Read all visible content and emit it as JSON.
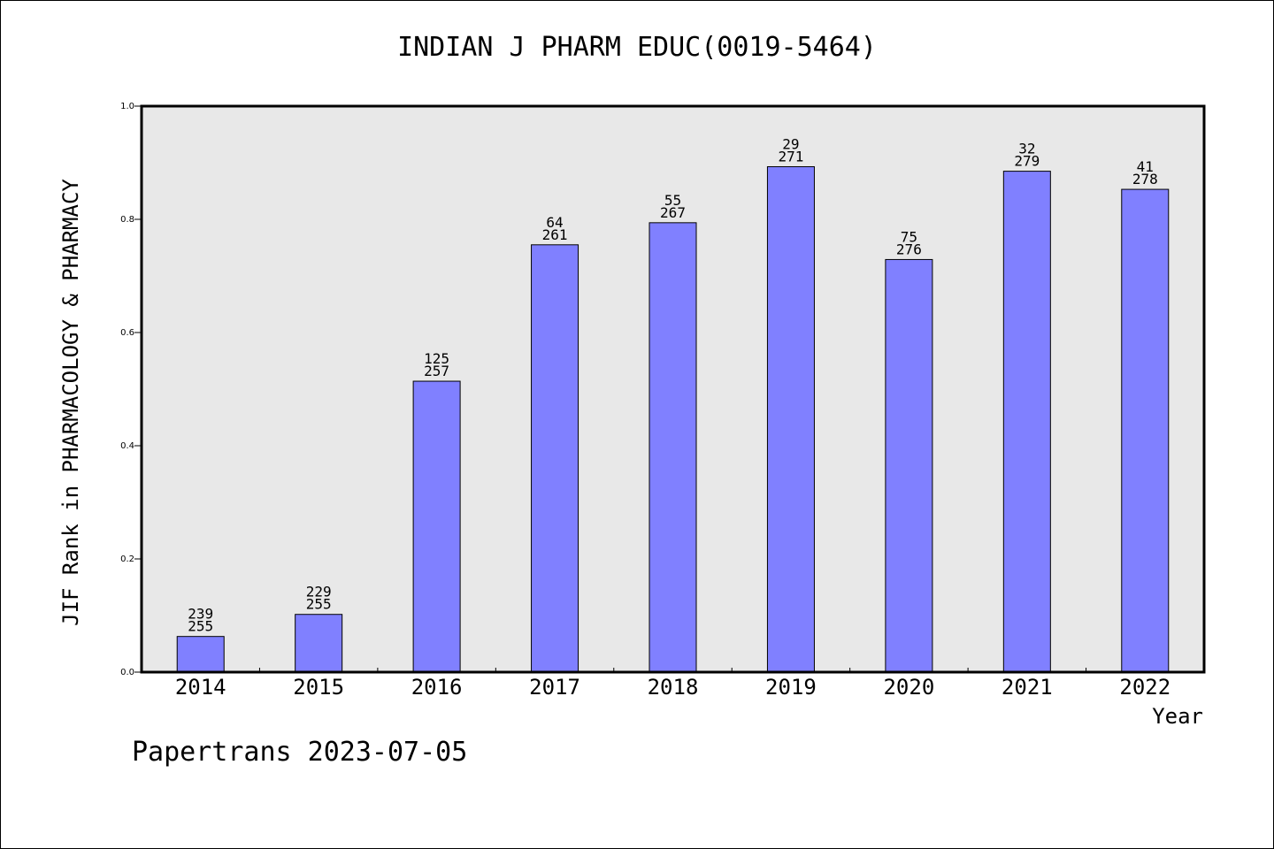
{
  "chart_data": {
    "type": "bar",
    "title": "INDIAN J PHARM EDUC(0019-5464)",
    "xlabel": "Year",
    "ylabel": "JIF Rank in PHARMACOLOGY & PHARMACY",
    "ylim": [
      0,
      1
    ],
    "yticks": [
      "0.0",
      "0.2",
      "0.4",
      "0.6",
      "0.8",
      "1.0"
    ],
    "grid": false,
    "bar_color": "#8080ff",
    "plot_background": "#e8e8e8",
    "categories": [
      "2014",
      "2015",
      "2016",
      "2017",
      "2018",
      "2019",
      "2020",
      "2021",
      "2022"
    ],
    "values": [
      0.063,
      0.102,
      0.514,
      0.755,
      0.794,
      0.893,
      0.729,
      0.885,
      0.853
    ],
    "rank": [
      "239",
      "229",
      "125",
      "64",
      "55",
      "29",
      "75",
      "32",
      "41"
    ],
    "total": [
      "255",
      "255",
      "257",
      "261",
      "267",
      "271",
      "276",
      "279",
      "278"
    ]
  },
  "footer": "Papertrans 2023-07-05"
}
